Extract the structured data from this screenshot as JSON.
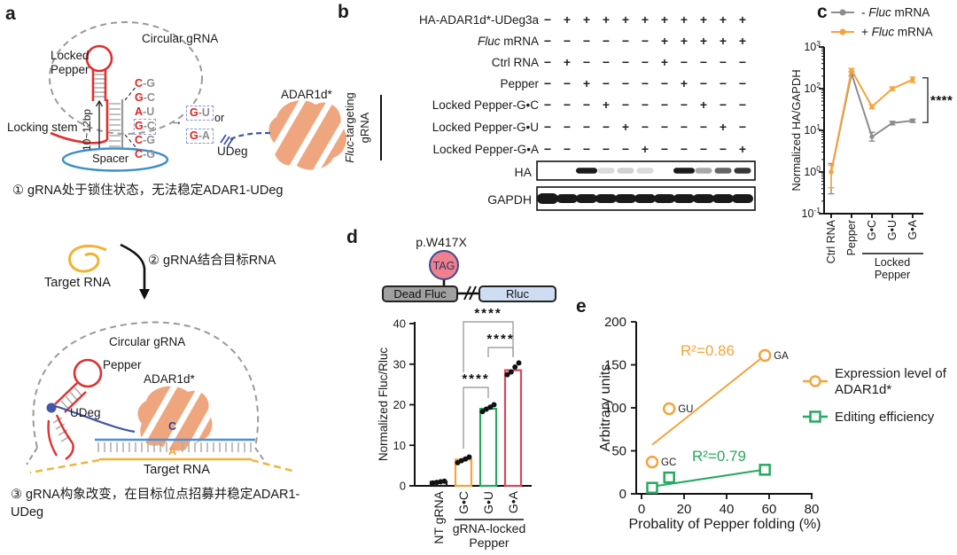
{
  "colors": {
    "orange": "#F5A43C",
    "gray": "#8C8C8C",
    "green": "#27A85F",
    "crimson": "#D5485C",
    "hairpin_red": "#E03030",
    "spacer_blue": "#3E8FC9",
    "udeg_navy": "#4156A6",
    "adar_salmon": "#EFA67E",
    "band_black": "#1A1A1A"
  },
  "panel_a": {
    "label": "a",
    "circular_grna_top": "Circular gRNA",
    "locked_pepper": "Locked\nPepper",
    "locking_stem": "Locking stem",
    "bp_range": "10~12bp",
    "spacer": "Spacer",
    "pairs": [
      {
        "l": "C",
        "r": "G",
        "boxed": false
      },
      {
        "l": "G",
        "r": "C",
        "boxed": false
      },
      {
        "l": "A",
        "r": "U",
        "boxed": false
      },
      {
        "l": "G",
        "r": "C",
        "boxed": true
      },
      {
        "l": "C",
        "r": "G",
        "boxed": false
      },
      {
        "l": "C",
        "r": "G",
        "boxed": false
      }
    ],
    "alt_pairs": [
      {
        "l": "G",
        "r": "U"
      },
      {
        "l": "G",
        "r": "A"
      }
    ],
    "or_label": "or",
    "udeg_top": "UDeg",
    "adar_top": "ADAR1d*",
    "step1": "① gRNA处于锁住状态，无法稳定ADAR1-UDeg",
    "target_rna_mid": "Target RNA",
    "step2": "② gRNA结合目标RNA",
    "circular_grna_bottom": "Circular gRNA",
    "pepper": "Pepper",
    "adar_bottom": "ADAR1d*",
    "udeg_bottom": "UDeg",
    "edit_c": "C",
    "edit_a": "A",
    "target_rna_bottom": "Target RNA",
    "step3": "③ gRNA构象改变，在目标位点招募并稳定ADAR1-UDeg"
  },
  "panel_b": {
    "label": "b",
    "rows": [
      {
        "italic": "",
        "label": "HA-ADAR1d*-UDeg3a",
        "values": [
          "−",
          "+",
          "+",
          "+",
          "+",
          "+",
          "+",
          "+",
          "+",
          "+",
          "+"
        ]
      },
      {
        "italic": "Fluc",
        "label": " mRNA",
        "values": [
          "−",
          "−",
          "−",
          "−",
          "−",
          "−",
          "+",
          "+",
          "+",
          "+",
          "+"
        ]
      },
      {
        "italic": "",
        "label": "Ctrl RNA",
        "values": [
          "−",
          "+",
          "−",
          "−",
          "−",
          "−",
          "+",
          "−",
          "−",
          "−",
          "−"
        ]
      },
      {
        "italic": "",
        "label": "Pepper",
        "values": [
          "−",
          "−",
          "+",
          "−",
          "−",
          "−",
          "−",
          "+",
          "−",
          "−",
          "−"
        ]
      },
      {
        "italic": "",
        "label": "Locked Pepper-G•C",
        "values": [
          "−",
          "−",
          "−",
          "+",
          "−",
          "−",
          "−",
          "−",
          "+",
          "−",
          "−"
        ]
      },
      {
        "italic": "",
        "label": "Locked Pepper-G•U",
        "values": [
          "−",
          "−",
          "−",
          "−",
          "+",
          "−",
          "−",
          "−",
          "−",
          "+",
          "−"
        ]
      },
      {
        "italic": "",
        "label": "Locked Pepper-G•A",
        "values": [
          "−",
          "−",
          "−",
          "−",
          "−",
          "+",
          "−",
          "−",
          "−",
          "−",
          "+"
        ]
      }
    ],
    "bracket": {
      "line1_italic": "Fluc",
      "line1_rest": "-targeting",
      "line2": "gRNA"
    },
    "blots": [
      {
        "label": "HA",
        "bands": [
          0,
          0,
          1,
          0.14,
          0.2,
          0.16,
          0,
          1,
          0.38,
          0.68,
          0.88
        ]
      },
      {
        "label": "GAPDH",
        "bands": [
          1,
          1,
          1,
          1,
          1,
          1,
          1,
          1,
          1,
          1,
          1
        ]
      }
    ]
  },
  "panel_c": {
    "label": "c",
    "legend": [
      {
        "pre": "- ",
        "italic": "Fluc",
        "rest": " mRNA",
        "color": "#8C8C8C"
      },
      {
        "pre": "+ ",
        "italic": "Fluc",
        "rest": " mRNA",
        "color": "#F5A43C"
      }
    ]
  },
  "panel_d": {
    "label": "d",
    "schematic": {
      "mutation": "p.W417X",
      "codon": "TAG",
      "left_box": "Dead Fluc",
      "right_box": "Rluc"
    }
  },
  "panel_e": {
    "label": "e",
    "legend": [
      {
        "line1": "Expression level of",
        "line2": "ADAR1d*",
        "color": "#F5A43C",
        "marker": "circle"
      },
      {
        "line1": "Editing efficiency",
        "line2": "",
        "color": "#27A85F",
        "marker": "square"
      }
    ]
  },
  "chart_data": [
    {
      "id": "c",
      "type": "line",
      "ylabel": "Normalized HA/GAPDH",
      "yscale": "log",
      "ylim": [
        0.1,
        1000
      ],
      "categories": [
        "Ctrl RNA",
        "Pepper",
        "G•C",
        "G•U",
        "G•A"
      ],
      "group_label": [
        "Locked",
        "Pepper"
      ],
      "group_span": [
        2,
        4
      ],
      "series": [
        {
          "name": "- Fluc mRNA",
          "color": "#8C8C8C",
          "values": [
            1.0,
            230,
            7,
            15,
            17
          ],
          "err_lo": [
            0.3,
            205,
            5.5,
            13.5,
            15.5
          ],
          "err_hi": [
            1.6,
            255,
            9,
            16.5,
            18.5
          ]
        },
        {
          "name": "+ Fluc mRNA",
          "color": "#F5A43C",
          "values": [
            1.0,
            280,
            37,
            100,
            165
          ],
          "err_lo": [
            0.42,
            255,
            33,
            90,
            140
          ],
          "err_hi": [
            1.45,
            305,
            41,
            110,
            190
          ]
        }
      ],
      "significance": {
        "between": [
          "G•A gray",
          "G•A orange"
        ],
        "label": "****"
      }
    },
    {
      "id": "d",
      "type": "bar",
      "ylabel": "Normalized Fluc/Rluc",
      "ylim": [
        0,
        40
      ],
      "yticks": [
        0,
        10,
        20,
        30,
        40
      ],
      "categories": [
        "NT gRNA",
        "G•C",
        "G•U",
        "G•A"
      ],
      "values": [
        1,
        6.5,
        19,
        28.5
      ],
      "bar_colors": [
        "#1A1A1A",
        "#F5A43C",
        "#27A85F",
        "#D5485C"
      ],
      "dots": [
        [
          0.7,
          0.85,
          1.0,
          1.15
        ],
        [
          5.7,
          6.2,
          6.6,
          7.1
        ],
        [
          18.3,
          18.9,
          19.4,
          20.0
        ],
        [
          27.4,
          28.1,
          29.3,
          30.3
        ]
      ],
      "group_label": [
        "gRNA-locked",
        "Pepper"
      ],
      "group_span": [
        1,
        3
      ],
      "significance": [
        {
          "a": 1,
          "b": 3,
          "label": "****"
        },
        {
          "a": 2,
          "b": 3,
          "label": "****"
        },
        {
          "a": 1,
          "b": 2,
          "label": "****"
        }
      ]
    },
    {
      "id": "e",
      "type": "scatter",
      "xlabel": "Probality of Pepper folding (%)",
      "ylabel": "Arbitrary units",
      "xlim": [
        0,
        80
      ],
      "xticks": [
        0,
        20,
        40,
        60,
        80
      ],
      "ylim": [
        0,
        200
      ],
      "yticks": [
        0,
        50,
        100,
        150,
        200
      ],
      "series": [
        {
          "name": "Expression level of ADAR1d*",
          "color": "#F5A43C",
          "marker": "circle",
          "r2": "R²=0.86",
          "points": [
            {
              "x": 5,
              "y": 37,
              "label": "GC"
            },
            {
              "x": 13,
              "y": 99,
              "label": "GU"
            },
            {
              "x": 58,
              "y": 161,
              "label": "GA"
            }
          ],
          "fit": {
            "x1": 5,
            "y1": 57,
            "x2": 58,
            "y2": 161
          }
        },
        {
          "name": "Editing efficiency",
          "color": "#27A85F",
          "marker": "square",
          "r2": "R²=0.79",
          "points": [
            {
              "x": 5,
              "y": 7
            },
            {
              "x": 13,
              "y": 19
            },
            {
              "x": 58,
              "y": 28
            }
          ],
          "fit": {
            "x1": 4,
            "y1": 8,
            "x2": 60,
            "y2": 29
          }
        }
      ]
    }
  ]
}
